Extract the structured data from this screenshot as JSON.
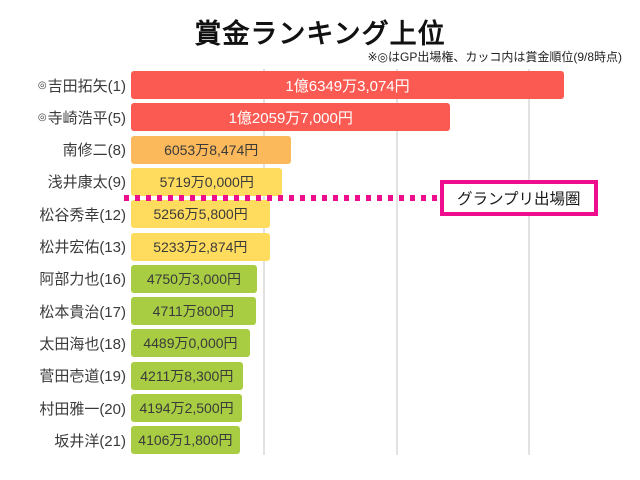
{
  "header": {
    "title": "賞金ランキング上位",
    "subtitle": "※◎はGP出場権、カッコ内は賞金順位(9/8時点)"
  },
  "chart_data": {
    "type": "bar",
    "orientation": "horizontal",
    "title": "賞金ランキング上位",
    "unit": "万円 (10k yen)",
    "categories": [
      "◎吉田拓矢(1)",
      "◎寺崎浩平(5)",
      "南修二(8)",
      "浅井康太(9)",
      "松谷秀幸(12)",
      "松井宏佑(13)",
      "阿部力也(16)",
      "松本貴治(17)",
      "太田海也(18)",
      "菅田壱道(19)",
      "村田雅一(20)",
      "坂井洋(21)"
    ],
    "values_10k_yen": [
      16349.3074,
      12059.7,
      6053.8474,
      5719.0,
      5256.58,
      5233.2874,
      4750.3,
      4711.08,
      4489.0,
      4211.83,
      4194.25,
      4106.18
    ],
    "value_labels": [
      "1億6349万3,074円",
      "1億2059万7,000円",
      "6053万8,474円",
      "5719万0,000円",
      "5256万5,800円",
      "5233万2,874円",
      "4750万3,000円",
      "4711万800円",
      "4489万0,000円",
      "4211万8,300円",
      "4194万2,500円",
      "4106万1,800円"
    ],
    "bar_colors": [
      "#fa5a52",
      "#fa5a52",
      "#fbb95b",
      "#ffdc5e",
      "#ffdc5e",
      "#ffdc5e",
      "#a8cd43",
      "#a8cd43",
      "#a8cd43",
      "#a8cd43",
      "#a8cd43",
      "#a8cd43"
    ],
    "value_text_colors": [
      "#ffffff",
      "#ffffff",
      "#3a3a3a",
      "#3a3a3a",
      "#3a3a3a",
      "#3a3a3a",
      "#3a3a3a",
      "#3a3a3a",
      "#3a3a3a",
      "#3a3a3a",
      "#3a3a3a",
      "#3a3a3a"
    ],
    "xlim_10k_yen": [
      0,
      18900
    ],
    "gridlines_10k_yen": [
      5000,
      10000,
      15000
    ],
    "grid": true,
    "legend": false,
    "annotation": {
      "label": "グランプリ出場圏",
      "line_after_category_index": 3,
      "line_color": "#ee0d8c",
      "line_style": "dotted"
    }
  }
}
